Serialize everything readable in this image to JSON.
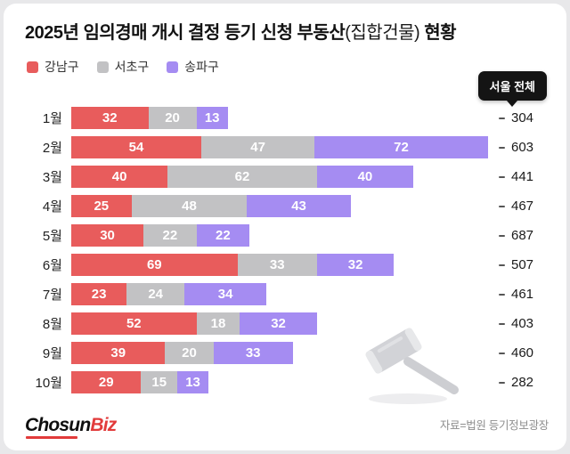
{
  "title": {
    "part1": "2025년 임의경매 개시 결정 등기 신청 부동산",
    "part2": "(집합건물)",
    "part3": " 현황"
  },
  "legend": [
    {
      "label": "강남구",
      "color": "#e85c5c"
    },
    {
      "label": "서초구",
      "color": "#c2c2c4"
    },
    {
      "label": "송파구",
      "color": "#a58cf2"
    }
  ],
  "badge": {
    "label": "서울 전체"
  },
  "chart_data": {
    "type": "bar",
    "orientation": "horizontal",
    "stacked": true,
    "legend_position": "top-left",
    "categories": [
      "1월",
      "2월",
      "3월",
      "4월",
      "5월",
      "6월",
      "7월",
      "8월",
      "9월",
      "10월"
    ],
    "series": [
      {
        "name": "강남구",
        "color": "#e85c5c",
        "values": [
          32,
          54,
          40,
          25,
          30,
          69,
          23,
          52,
          39,
          29
        ]
      },
      {
        "name": "서초구",
        "color": "#c2c2c4",
        "values": [
          20,
          47,
          62,
          48,
          22,
          33,
          24,
          18,
          20,
          15
        ]
      },
      {
        "name": "송파구",
        "color": "#a58cf2",
        "values": [
          13,
          72,
          40,
          43,
          22,
          32,
          34,
          32,
          33,
          13
        ]
      }
    ],
    "totals": {
      "name": "서울 전체",
      "values": [
        304,
        603,
        441,
        467,
        687,
        507,
        461,
        403,
        460,
        282
      ]
    },
    "x_max_units": 176
  },
  "footer": {
    "logo_chosun": "Chosun",
    "logo_biz": "Biz",
    "source": "자료=법원 등기정보광장"
  }
}
